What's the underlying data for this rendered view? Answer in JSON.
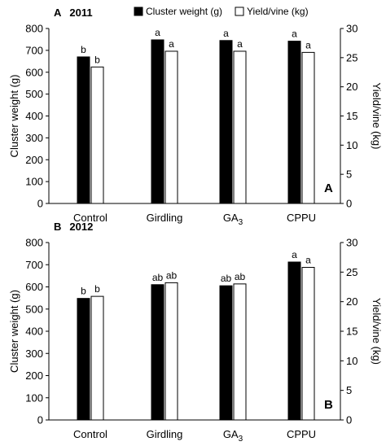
{
  "legend": {
    "items": [
      {
        "label": "Cluster weight (g)",
        "swatch": "#000000",
        "stroke": "#000000"
      },
      {
        "label": "Yield/vine (kg)",
        "swatch": "#ffffff",
        "stroke": "#000000"
      }
    ]
  },
  "chart_data": [
    {
      "type": "bar",
      "panel_label": "A",
      "title": "2011",
      "corner_label": "A",
      "categories": [
        "Control",
        "Girdling",
        "GA",
        "CPPU"
      ],
      "category_subscripts": [
        "",
        "",
        "3",
        ""
      ],
      "ylabel": "Cluster weight (g)",
      "y2label": "Yield/vine (kg)",
      "ylim": [
        0,
        800
      ],
      "y2lim": [
        0,
        30
      ],
      "yticks": [
        0,
        100,
        200,
        300,
        400,
        500,
        600,
        700,
        800
      ],
      "y2ticks": [
        0,
        5,
        10,
        15,
        20,
        25,
        30
      ],
      "series": [
        {
          "name": "Cluster weight (g)",
          "axis": "left",
          "color": "#000000",
          "values": [
            670,
            748,
            745,
            742
          ],
          "labels": [
            "b",
            "a",
            "a",
            "a"
          ]
        },
        {
          "name": "Yield/vine (kg)",
          "axis": "right",
          "color": "#ffffff",
          "values": [
            23.4,
            26.1,
            26.1,
            25.9
          ],
          "labels": [
            "b",
            "a",
            "a",
            "a"
          ]
        }
      ]
    },
    {
      "type": "bar",
      "panel_label": "B",
      "title": "2012",
      "corner_label": "B",
      "categories": [
        "Control",
        "Girdling",
        "GA",
        "CPPU"
      ],
      "category_subscripts": [
        "",
        "",
        "3",
        ""
      ],
      "ylabel": "Cluster weight (g)",
      "y2label": "Yield/vine (kg)",
      "ylim": [
        0,
        800
      ],
      "y2lim": [
        0,
        30
      ],
      "yticks": [
        0,
        100,
        200,
        300,
        400,
        500,
        600,
        700,
        800
      ],
      "y2ticks": [
        0,
        5,
        10,
        15,
        20,
        25,
        30
      ],
      "series": [
        {
          "name": "Cluster weight (g)",
          "axis": "left",
          "color": "#000000",
          "values": [
            548,
            610,
            605,
            712
          ],
          "labels": [
            "b",
            "ab",
            "ab",
            "a"
          ]
        },
        {
          "name": "Yield/vine (kg)",
          "axis": "right",
          "color": "#ffffff",
          "values": [
            20.9,
            23.2,
            23.0,
            25.8
          ],
          "labels": [
            "b",
            "ab",
            "ab",
            "a"
          ]
        }
      ]
    }
  ]
}
